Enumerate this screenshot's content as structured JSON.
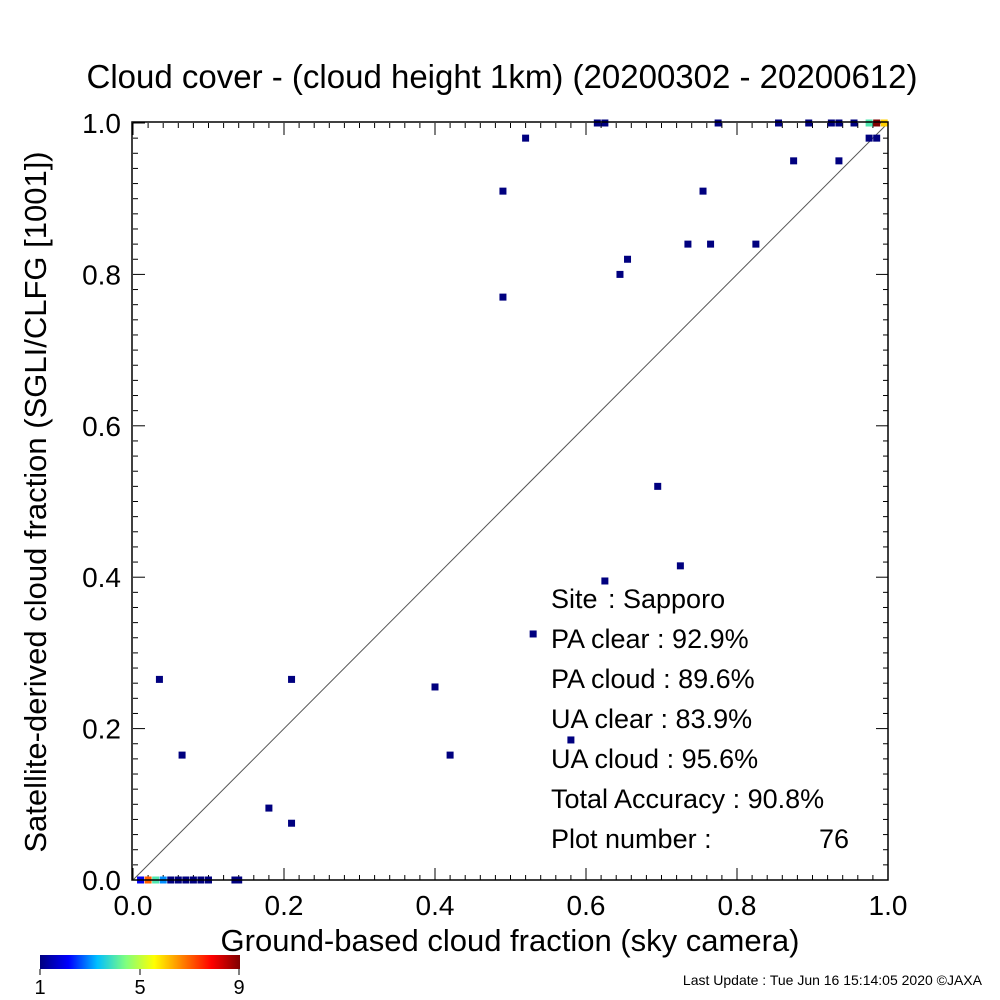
{
  "chart_data": {
    "type": "scatter",
    "title": "Cloud cover - (cloud height 1km)  (20200302 - 20200612)",
    "xlabel": "Ground-based cloud fraction (sky camera)",
    "ylabel": "Satellite-derived cloud fraction (SGLI/CLFG [1001])",
    "xlim": [
      0.0,
      1.0
    ],
    "ylim": [
      0.0,
      1.0
    ],
    "x_ticks": [
      "0.0",
      "0.2",
      "0.4",
      "0.6",
      "0.8",
      "1.0"
    ],
    "y_ticks": [
      "0.0",
      "0.2",
      "0.4",
      "0.6",
      "0.8",
      "1.0"
    ],
    "reference_line": "y = x",
    "grid": false,
    "points": [
      {
        "x": 0.01,
        "y": 0.0,
        "count": 2
      },
      {
        "x": 0.02,
        "y": 0.0,
        "count": 7
      },
      {
        "x": 0.03,
        "y": 0.0,
        "count": 4
      },
      {
        "x": 0.04,
        "y": 0.0,
        "count": 3
      },
      {
        "x": 0.05,
        "y": 0.0,
        "count": 1
      },
      {
        "x": 0.06,
        "y": 0.0,
        "count": 1
      },
      {
        "x": 0.07,
        "y": 0.0,
        "count": 1
      },
      {
        "x": 0.08,
        "y": 0.0,
        "count": 1
      },
      {
        "x": 0.09,
        "y": 0.0,
        "count": 1
      },
      {
        "x": 0.1,
        "y": 0.0,
        "count": 1
      },
      {
        "x": 0.135,
        "y": 0.0,
        "count": 1
      },
      {
        "x": 0.14,
        "y": 0.0,
        "count": 1
      },
      {
        "x": 0.18,
        "y": 0.095,
        "count": 1
      },
      {
        "x": 0.21,
        "y": 0.075,
        "count": 1
      },
      {
        "x": 0.035,
        "y": 0.265,
        "count": 1
      },
      {
        "x": 0.065,
        "y": 0.165,
        "count": 1
      },
      {
        "x": 0.21,
        "y": 0.265,
        "count": 1
      },
      {
        "x": 0.4,
        "y": 0.255,
        "count": 1
      },
      {
        "x": 0.42,
        "y": 0.165,
        "count": 1
      },
      {
        "x": 0.53,
        "y": 0.325,
        "count": 1
      },
      {
        "x": 0.58,
        "y": 0.185,
        "count": 1
      },
      {
        "x": 0.625,
        "y": 0.395,
        "count": 1
      },
      {
        "x": 0.695,
        "y": 0.52,
        "count": 1
      },
      {
        "x": 0.725,
        "y": 0.415,
        "count": 1
      },
      {
        "x": 0.49,
        "y": 0.77,
        "count": 1
      },
      {
        "x": 0.49,
        "y": 0.91,
        "count": 1
      },
      {
        "x": 0.52,
        "y": 0.98,
        "count": 1
      },
      {
        "x": 0.615,
        "y": 1.0,
        "count": 1
      },
      {
        "x": 0.625,
        "y": 1.0,
        "count": 1
      },
      {
        "x": 0.645,
        "y": 0.8,
        "count": 1
      },
      {
        "x": 0.655,
        "y": 0.82,
        "count": 1
      },
      {
        "x": 0.735,
        "y": 0.84,
        "count": 1
      },
      {
        "x": 0.755,
        "y": 0.91,
        "count": 1
      },
      {
        "x": 0.765,
        "y": 0.84,
        "count": 1
      },
      {
        "x": 0.775,
        "y": 1.0,
        "count": 1
      },
      {
        "x": 0.825,
        "y": 0.84,
        "count": 1
      },
      {
        "x": 0.855,
        "y": 1.0,
        "count": 1
      },
      {
        "x": 0.875,
        "y": 0.95,
        "count": 1
      },
      {
        "x": 0.895,
        "y": 1.0,
        "count": 1
      },
      {
        "x": 0.925,
        "y": 1.0,
        "count": 1
      },
      {
        "x": 0.935,
        "y": 1.0,
        "count": 1
      },
      {
        "x": 0.935,
        "y": 0.95,
        "count": 1
      },
      {
        "x": 0.955,
        "y": 1.0,
        "count": 1
      },
      {
        "x": 0.975,
        "y": 0.98,
        "count": 1
      },
      {
        "x": 0.985,
        "y": 0.98,
        "count": 1
      },
      {
        "x": 0.975,
        "y": 1.0,
        "count": 4
      },
      {
        "x": 0.985,
        "y": 1.0,
        "count": 9
      },
      {
        "x": 0.995,
        "y": 1.0,
        "count": 6
      }
    ],
    "colorbar": {
      "min_label": "1",
      "mid_label": "5",
      "max_label": "9",
      "min": 1,
      "max": 9,
      "stops": [
        "#00007f",
        "#0000ff",
        "#00bfff",
        "#7fff7f",
        "#ffff00",
        "#ff7f00",
        "#ff0000",
        "#7f0000"
      ]
    },
    "annotations": {
      "site_label": "Site",
      "site_value": ": Sapporo",
      "pa_clear": "PA clear :  92.9%",
      "pa_cloud": "PA cloud :  89.6%",
      "ua_clear": "UA clear :  83.9%",
      "ua_cloud": "UA cloud :  95.6%",
      "total_accuracy": "Total Accuracy :  90.8%",
      "plot_number_label": "Plot number :",
      "plot_number_value": "76"
    }
  },
  "footer": {
    "last_update": "Last Update : Tue Jun 16 15:14:05 2020  ©JAXA"
  }
}
